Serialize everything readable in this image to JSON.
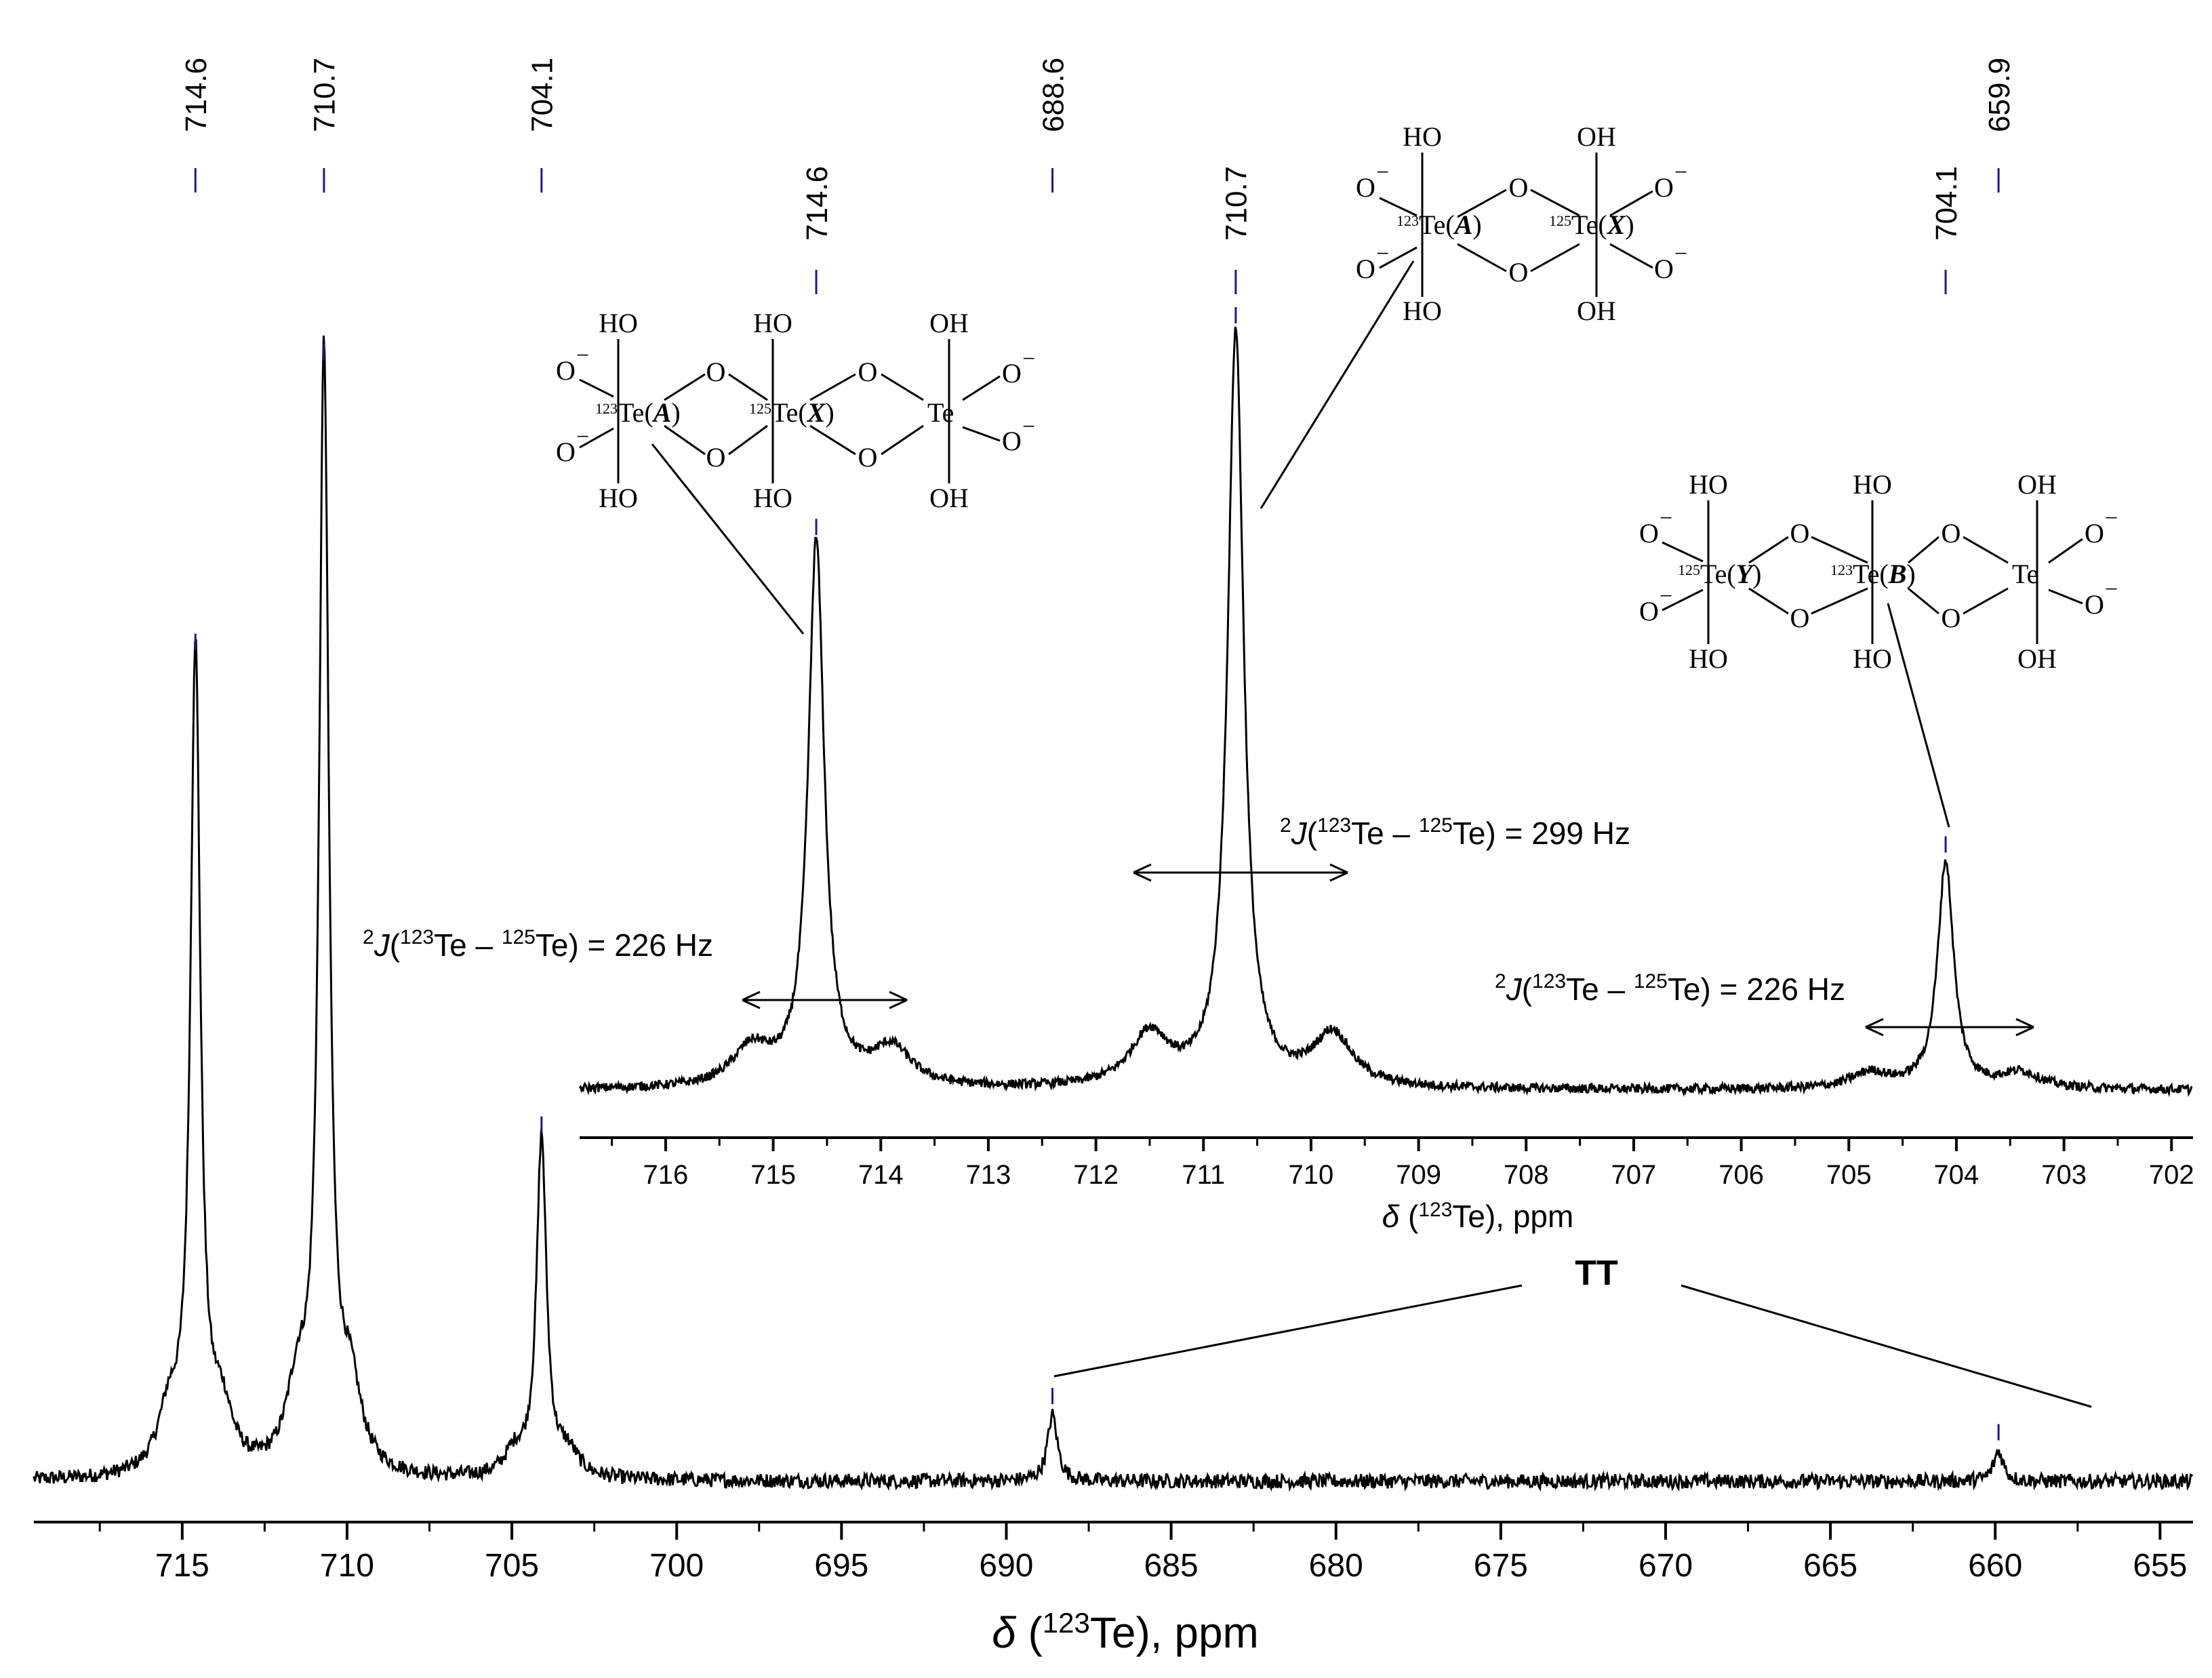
{
  "chart_data": [
    {
      "panel": "main",
      "type": "line",
      "xlabel": "δ (¹²³Te), ppm",
      "x_range_reversed": [
        719.5,
        654
      ],
      "x_ticks": [
        715,
        710,
        705,
        700,
        695,
        690,
        685,
        680,
        675,
        670,
        665,
        660,
        655
      ],
      "y_axis": "none",
      "peaks": [
        {
          "x": 714.6,
          "label": "714.6",
          "height": 0.68
        },
        {
          "x": 710.7,
          "label": "710.7",
          "height": 0.92
        },
        {
          "x": 704.1,
          "label": "704.1",
          "height": 0.28
        },
        {
          "x": 688.6,
          "label": "688.6",
          "height": 0.055
        },
        {
          "x": 659.9,
          "label": "659.9",
          "height": 0.025
        }
      ],
      "annotations": {
        "group_label": "TT",
        "group_peaks": [
          688.6,
          659.9
        ]
      }
    },
    {
      "panel": "inset",
      "type": "line",
      "xlabel": "δ (¹²³Te), ppm",
      "x_range_reversed": [
        716.8,
        701.8
      ],
      "x_ticks": [
        716,
        715,
        714,
        713,
        712,
        711,
        710,
        709,
        708,
        707,
        706,
        705,
        704,
        703,
        702
      ],
      "y_axis": "none",
      "peaks": [
        {
          "x": 714.6,
          "label": "714.6",
          "height": 0.72,
          "satellites": [
            715.2,
            713.9
          ]
        },
        {
          "x": 710.7,
          "label": "710.7",
          "height": 1.0,
          "satellites": [
            711.5,
            709.8
          ]
        },
        {
          "x": 704.1,
          "label": "704.1",
          "height": 0.3,
          "satellites": [
            704.8,
            703.4
          ]
        }
      ],
      "couplings": [
        {
          "text": "²J(¹²³Te – ¹²⁵Te) = 226 Hz",
          "center": 714.6
        },
        {
          "text": "²J(¹²³Te – ¹²⁵Te) = 299 Hz",
          "center": 710.7
        },
        {
          "text": "²J(¹²³Te – ¹²⁵Te) = 226 Hz",
          "center": 704.1
        }
      ]
    }
  ],
  "structures": {
    "s1": {
      "ho": "HO",
      "oh": "OH",
      "o": "O",
      "om": "O",
      "minus": "−",
      "te123": "123",
      "te125": "125",
      "te": "Te",
      "labA": "A",
      "labX": "X",
      "paren_open": "(",
      "paren_close": ")"
    },
    "s2": {
      "labA": "A",
      "labX": "X"
    },
    "s3": {
      "labY": "Y",
      "labB": "B"
    }
  }
}
